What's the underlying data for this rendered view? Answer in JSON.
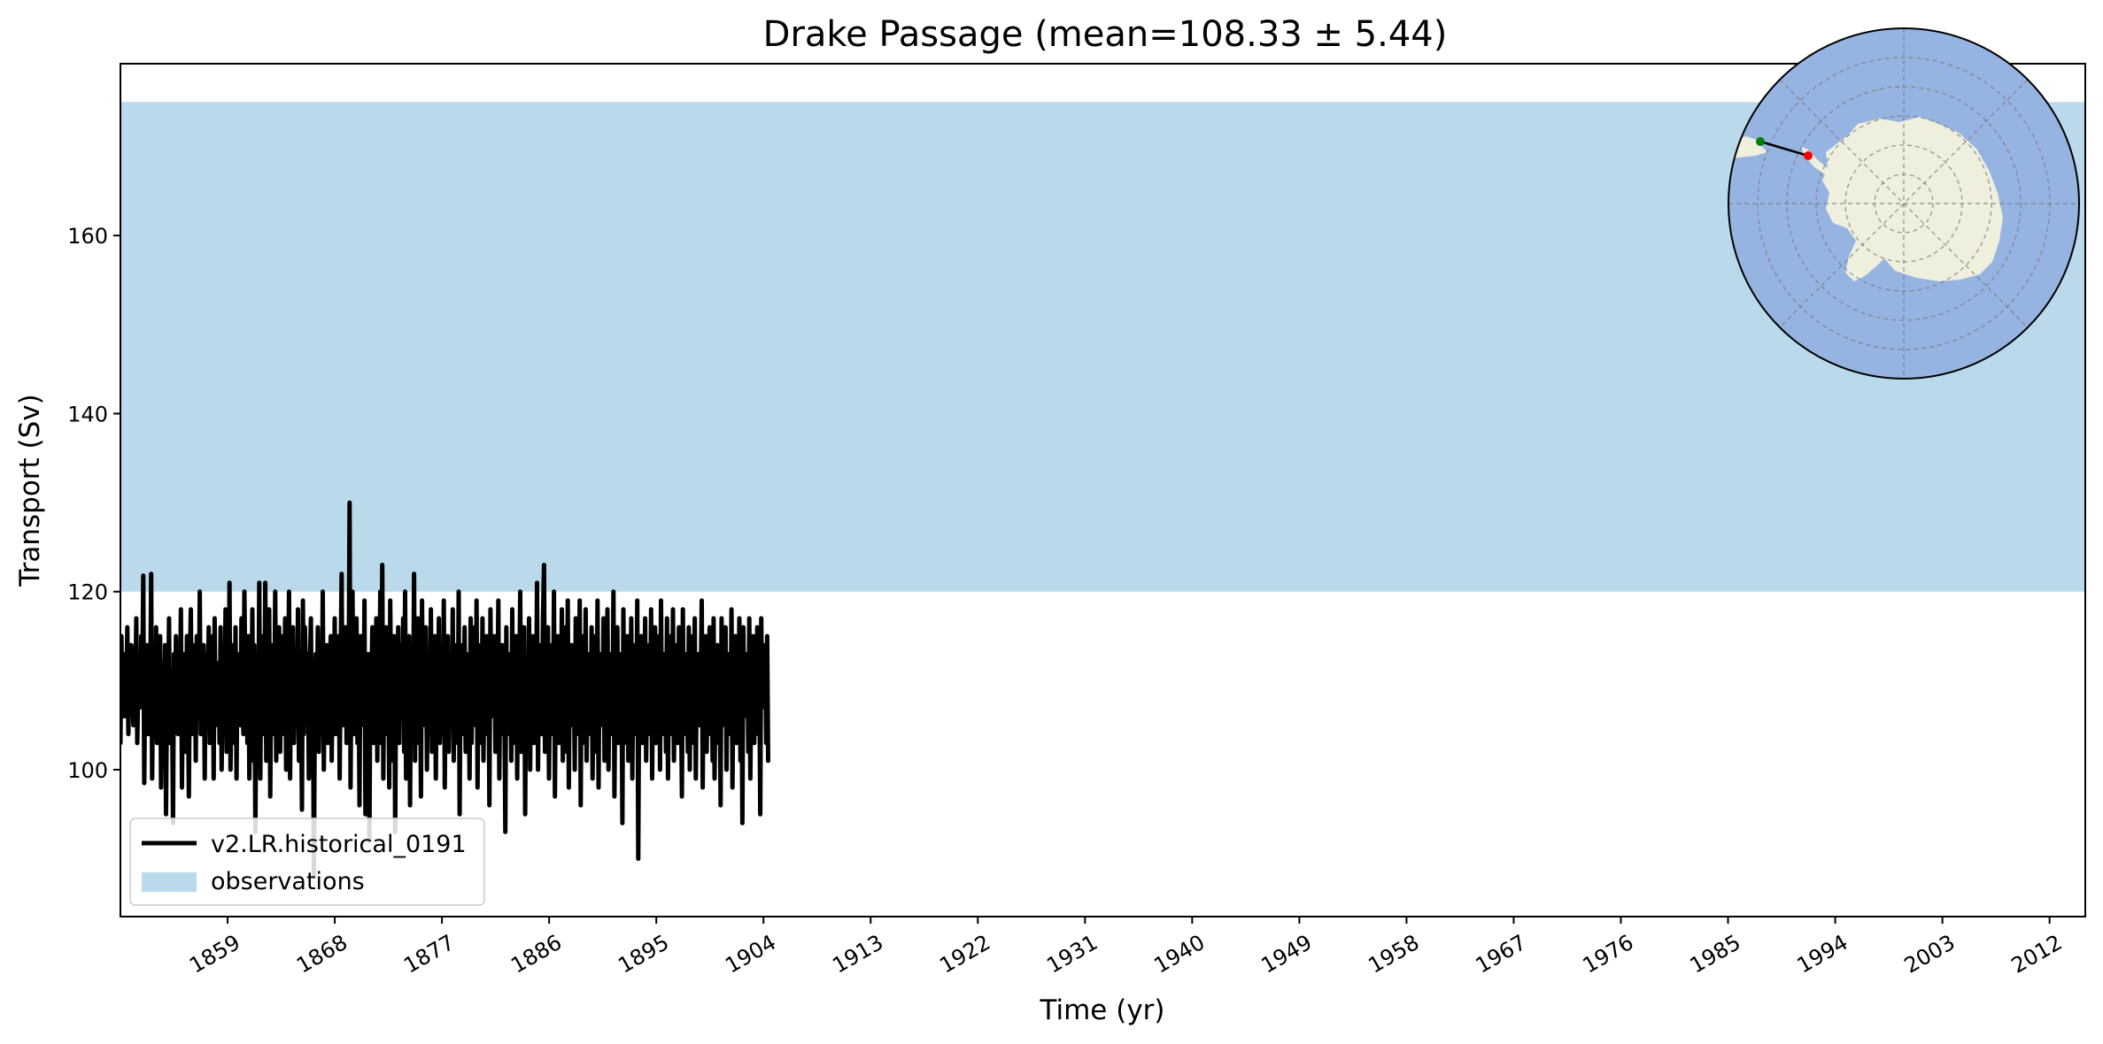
{
  "chart_data": {
    "type": "line",
    "title": "Drake Passage (mean=108.33 ± 5.44)",
    "xlabel": "Time (yr)",
    "ylabel": "Transport (Sv)",
    "xlim": [
      1850,
      2015
    ],
    "ylim": [
      83.5,
      179.3
    ],
    "xticks": [
      1859,
      1868,
      1877,
      1886,
      1895,
      1904,
      1913,
      1922,
      1931,
      1940,
      1949,
      1958,
      1967,
      1976,
      1985,
      1994,
      2003,
      2012
    ],
    "yticks": [
      100,
      120,
      140,
      160
    ],
    "grid": false,
    "legend_position": "lower-left",
    "series": [
      {
        "name": "v2.LR.historical_0191",
        "color": "#000000",
        "style": "line",
        "x_start": 1850,
        "x_step": 0.0833,
        "mean": 108.33,
        "std": 5.44,
        "values": [
          103,
          115,
          108,
          112,
          106,
          113,
          109,
          116,
          104,
          111,
          107,
          114,
          110,
          105,
          113,
          108,
          117,
          103,
          110,
          112,
          107,
          115,
          109,
          121.8,
          98.5,
          111,
          106,
          114,
          104,
          112,
          108,
          122,
          99,
          110,
          113,
          106,
          116,
          103,
          111,
          108,
          115,
          98,
          109,
          112,
          105,
          114,
          95,
          110,
          107,
          117,
          103,
          111,
          108,
          94,
          113,
          106,
          115,
          109,
          104,
          112,
          107,
          118,
          98,
          113,
          106,
          111,
          102,
          115,
          109,
          97,
          112,
          118,
          104,
          110,
          107,
          114,
          101,
          115,
          109,
          106,
          120,
          104,
          111,
          108,
          114,
          99,
          113,
          110,
          106,
          116,
          103,
          110,
          107,
          115,
          99,
          117,
          105,
          112,
          108,
          111,
          103,
          116,
          100,
          110,
          113,
          107,
          118,
          102,
          111,
          106,
          121,
          100,
          110,
          108,
          114,
          103,
          116,
          99,
          112,
          107,
          113,
          105,
          117,
          110,
          104,
          120,
          109,
          112,
          103,
          115,
          99,
          111,
          106,
          118,
          101,
          114,
          93,
          109,
          112,
          104,
          121,
          99,
          114,
          107,
          115,
          104,
          121,
          101,
          113,
          106,
          118,
          97,
          112,
          108,
          114,
          104,
          120,
          101,
          113,
          109,
          116,
          102,
          115,
          106,
          111,
          104,
          117,
          100,
          112,
          108,
          120,
          99,
          113,
          107,
          116,
          103,
          110,
          112,
          105,
          118,
          101,
          113,
          108,
          95.5,
          119,
          104,
          116,
          110,
          107,
          113,
          99,
          112,
          117,
          104,
          111,
          88,
          108,
          113,
          106,
          116,
          102,
          109,
          112,
          105,
          120,
          100,
          111,
          107,
          114,
          103,
          112,
          109,
          115,
          101,
          111,
          106,
          117,
          104,
          113,
          108,
          115,
          99,
          112,
          122,
          105,
          110,
          107,
          116,
          103,
          113,
          109,
          130,
          98,
          114,
          120,
          104,
          113,
          108,
          117,
          103,
          112,
          96,
          115,
          108,
          110,
          105,
          119,
          95,
          111,
          107,
          113,
          92,
          112,
          109,
          116,
          103,
          114,
          107,
          117,
          101,
          113,
          109,
          120,
          103,
          123,
          99,
          112,
          107,
          116,
          104,
          111,
          98,
          119,
          106,
          113,
          101,
          115,
          93,
          112,
          108,
          116,
          103,
          114,
          110,
          106,
          117,
          102,
          120,
          99,
          113,
          108,
          115,
          96,
          112,
          110,
          105,
          122,
          101,
          113,
          107,
          117,
          103,
          114,
          97,
          119,
          105,
          111,
          108,
          116,
          100,
          113,
          109,
          104,
          118,
          102,
          112,
          107,
          115,
          99,
          114,
          106,
          117,
          103,
          111,
          109,
          104,
          119,
          98,
          113,
          107,
          115,
          102,
          111,
          110,
          105,
          118,
          101,
          114,
          108,
          113,
          103,
          120,
          95,
          112,
          108,
          114,
          104,
          116,
          102,
          113,
          107,
          110,
          99,
          117,
          103,
          111,
          109,
          116,
          105,
          119,
          98,
          114,
          107,
          112,
          103,
          117,
          101,
          110,
          108,
          115,
          104,
          113,
          96,
          118,
          106,
          111,
          109,
          115,
          102,
          113,
          107,
          119,
          99,
          112,
          106,
          114,
          104,
          110,
          93,
          116,
          104,
          112,
          108,
          113,
          101,
          118,
          103,
          111,
          106,
          115,
          99,
          114,
          108,
          120,
          102,
          113,
          107,
          116,
          95,
          112,
          109,
          105,
          117,
          100,
          113,
          108,
          115,
          103,
          111,
          106,
          121,
          100,
          112,
          109,
          114,
          104,
          117,
          123,
          102,
          113,
          107,
          116,
          99,
          111,
          108,
          114,
          104,
          120,
          97,
          112,
          109,
          115,
          103,
          111,
          106,
          118,
          101,
          113,
          108,
          116,
          102,
          119,
          98,
          112,
          107,
          114,
          105,
          111,
          100,
          117,
          104,
          112,
          108,
          119,
          96,
          113,
          106,
          115,
          103,
          118,
          101,
          112,
          109,
          113,
          104,
          116,
          99,
          111,
          107,
          115,
          102,
          119,
          98,
          113,
          108,
          112,
          105,
          117,
          101,
          114,
          106,
          118,
          100,
          111,
          109,
          113,
          104,
          120,
          97,
          112,
          107,
          116,
          103,
          111,
          106,
          113,
          94,
          118,
          103,
          112,
          108,
          115,
          101,
          114,
          107,
          117,
          99,
          112,
          109,
          114,
          104,
          119,
          90,
          111,
          106,
          115,
          103,
          113,
          108,
          117,
          101,
          110,
          109,
          114,
          104,
          118,
          99,
          112,
          107,
          116,
          103,
          113,
          106,
          115,
          100,
          119,
          104,
          111,
          108,
          113,
          102,
          117,
          99,
          112,
          109,
          115,
          104,
          118,
          101,
          111,
          107,
          114,
          103,
          116,
          106,
          110,
          97,
          118,
          104,
          113,
          109,
          112,
          102,
          116,
          100,
          111,
          108,
          115,
          103,
          117,
          99,
          112,
          106,
          113,
          105,
          110,
          119,
          98,
          113,
          107,
          115,
          102,
          111,
          108,
          116,
          104,
          112,
          101,
          117,
          99,
          110,
          108,
          114,
          103,
          113,
          96,
          117,
          105,
          112,
          108,
          116,
          100,
          113,
          107,
          110,
          104,
          118,
          98,
          111,
          109,
          115,
          103,
          112,
          107,
          117,
          101,
          114,
          94,
          116,
          106,
          112,
          108,
          113,
          102,
          117,
          99,
          111,
          109,
          115,
          103,
          113,
          106,
          116,
          104,
          112,
          95,
          117,
          107,
          110,
          108,
          114,
          103,
          115,
          101
        ]
      }
    ],
    "observations_band": {
      "name": "observations",
      "color": "#badaeb",
      "y_range": [
        120,
        175
      ]
    },
    "inset_map": {
      "projection": "south-polar-stereographic",
      "ocean_color": "#96b4e1",
      "land_color": "#efefde",
      "section_start_color": "#008000",
      "section_end_color": "#ff0000"
    }
  }
}
